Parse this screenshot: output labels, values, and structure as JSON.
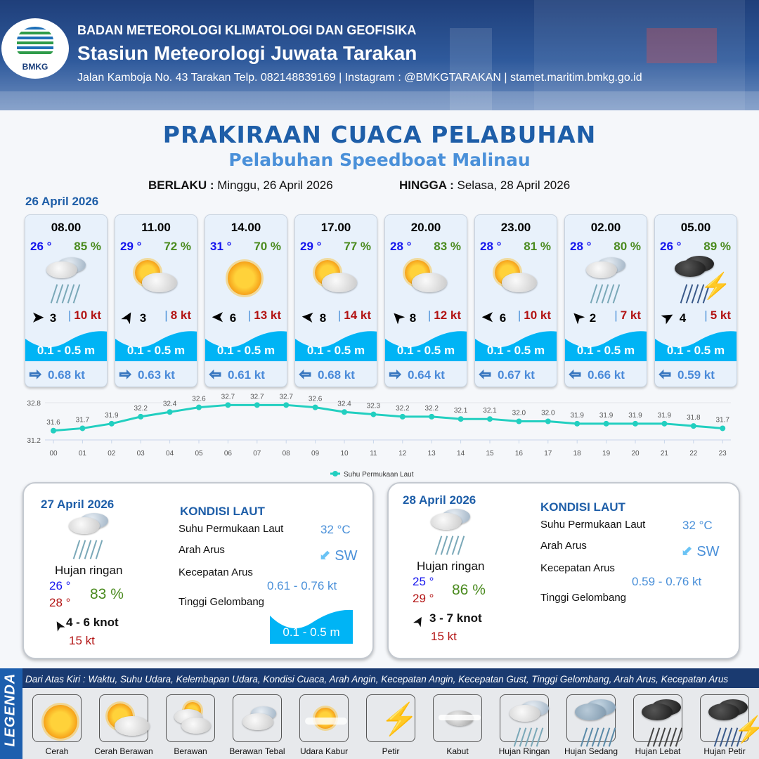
{
  "header": {
    "agency": "BADAN METEOROLOGI KLIMATOLOGI DAN GEOFISIKA",
    "station": "Stasiun Meteorologi Juwata Tarakan",
    "contact": "Jalan Kamboja No. 43 Tarakan  Telp. 082148839169 | Instagram : @BMKGTARAKAN | stamet.maritim.bmkg.go.id",
    "logo_text": "BMKG"
  },
  "title": "PRAKIRAAN CUACA PELABUHAN",
  "subtitle": "Pelabuhan Speedboat Malinau",
  "validity": {
    "from_label": "BERLAKU :",
    "from": "Minggu, 26 April 2026",
    "to_label": "HINGGA :",
    "to": "Selasa, 28 April 2026"
  },
  "day1_date": "26 April 2026",
  "colors": {
    "temp": "#1414ee",
    "humidity": "#4a8a1e",
    "gust": "#b31414",
    "wave": "#00b4f5",
    "title": "#1e5ea8",
    "line": "#22cfc0"
  },
  "forecast": [
    {
      "time": "08.00",
      "temp": "26 °",
      "rh": "85 %",
      "icon": "hujan-ringan",
      "wind_dir_deg": 0,
      "wind": "3",
      "gust": "10 kt",
      "wave": "0.1 - 0.5 m",
      "current_dir": "right",
      "current": "0.68 kt"
    },
    {
      "time": "11.00",
      "temp": "29 °",
      "rh": "72 %",
      "icon": "cerah-berawan",
      "wind_dir_deg": -60,
      "wind": "3",
      "gust": "8 kt",
      "wave": "0.1 - 0.5 m",
      "current_dir": "right",
      "current": "0.63 kt"
    },
    {
      "time": "14.00",
      "temp": "31 °",
      "rh": "70 %",
      "icon": "cerah",
      "wind_dir_deg": 180,
      "wind": "6",
      "gust": "13 kt",
      "wave": "0.1 - 0.5 m",
      "current_dir": "left",
      "current": "0.61 kt"
    },
    {
      "time": "17.00",
      "temp": "29 °",
      "rh": "77 %",
      "icon": "cerah-berawan",
      "wind_dir_deg": 185,
      "wind": "8",
      "gust": "14 kt",
      "wave": "0.1 - 0.5 m",
      "current_dir": "left",
      "current": "0.68 kt"
    },
    {
      "time": "20.00",
      "temp": "28 °",
      "rh": "83 %",
      "icon": "cerah-berawan",
      "wind_dir_deg": -135,
      "wind": "8",
      "gust": "12 kt",
      "wave": "0.1 - 0.5 m",
      "current_dir": "right",
      "current": "0.64 kt"
    },
    {
      "time": "23.00",
      "temp": "28 °",
      "rh": "81 %",
      "icon": "cerah-berawan",
      "wind_dir_deg": 180,
      "wind": "6",
      "gust": "10 kt",
      "wave": "0.1 - 0.5 m",
      "current_dir": "left",
      "current": "0.67 kt"
    },
    {
      "time": "02.00",
      "temp": "28 °",
      "rh": "80 %",
      "icon": "hujan-ringan",
      "wind_dir_deg": -135,
      "wind": "2",
      "gust": "7 kt",
      "wave": "0.1 - 0.5 m",
      "current_dir": "left",
      "current": "0.66 kt"
    },
    {
      "time": "05.00",
      "temp": "26 °",
      "rh": "89 %",
      "icon": "hujan-petir",
      "wind_dir_deg": -30,
      "wind": "4",
      "gust": "5 kt",
      "wave": "0.1 - 0.5 m",
      "current_dir": "left",
      "current": "0.59 kt"
    }
  ],
  "chart_data": {
    "type": "line",
    "x": [
      "00",
      "01",
      "02",
      "03",
      "04",
      "05",
      "06",
      "07",
      "08",
      "09",
      "10",
      "11",
      "12",
      "13",
      "14",
      "15",
      "16",
      "17",
      "18",
      "19",
      "20",
      "21",
      "22",
      "23"
    ],
    "series": [
      {
        "name": "Suhu Permukaan Laut",
        "values": [
          31.6,
          31.7,
          31.9,
          32.2,
          32.4,
          32.6,
          32.7,
          32.7,
          32.7,
          32.6,
          32.4,
          32.3,
          32.2,
          32.2,
          32.1,
          32.1,
          32.0,
          32.0,
          31.9,
          31.9,
          31.9,
          31.9,
          31.8,
          31.7
        ]
      }
    ],
    "yticks": [
      "32.8",
      "31.2"
    ],
    "ylim": [
      31.2,
      32.8
    ],
    "grid": true,
    "legend": "bottom",
    "data_labels": true
  },
  "days": [
    {
      "date": "27 April 2026",
      "icon": "hujan-ringan",
      "condition": "Hujan ringan",
      "tmin": "26 °",
      "tmax": "28 °",
      "rh": "83 %",
      "wind_dir_deg": -120,
      "wind": "4  - 6 knot",
      "gust": "15 kt",
      "kondisi": "KONDISI LAUT",
      "sst_label": "Suhu Permukaan Laut",
      "sst": "32 °C",
      "arus_label": "Arah Arus",
      "arus": "SW",
      "kec_label": "Kecepatan Arus",
      "kec": "0.61 - 0.76 kt",
      "gel_label": "Tinggi Gelombang",
      "gel": "0.1 - 0.5 m"
    },
    {
      "date": "28 April 2026",
      "icon": "hujan-ringan",
      "condition": "Hujan ringan",
      "tmin": "25 °",
      "tmax": "29 °",
      "rh": "86 %",
      "wind_dir_deg": -60,
      "wind": "3  - 7 knot",
      "gust": "15 kt",
      "kondisi": "KONDISI LAUT",
      "sst_label": "Suhu Permukaan Laut",
      "sst": "32 °C",
      "arus_label": "Arah Arus",
      "arus": "SW",
      "kec_label": "Kecepatan Arus",
      "kec": "0.59 - 0.76 kt",
      "gel_label": "Tinggi Gelombang"
    }
  ],
  "legend": {
    "title": "LEGENDA",
    "note": "Dari Atas Kiri : Waktu, Suhu Udara, Kelembapan Udara, Kondisi Cuaca, Arah Angin, Kecepatan Angin, Kecepatan Gust, Tinggi Gelombang, Arah Arus, Kecepatan Arus",
    "items": [
      {
        "icon": "cerah",
        "label": "Cerah"
      },
      {
        "icon": "cerah-berawan",
        "label": "Cerah Berawan"
      },
      {
        "icon": "berawan",
        "label": "Berawan"
      },
      {
        "icon": "berawan-tebal",
        "label": "Berawan Tebal"
      },
      {
        "icon": "udara-kabur",
        "label": "Udara Kabur"
      },
      {
        "icon": "petir",
        "label": "Petir"
      },
      {
        "icon": "kabut",
        "label": "Kabut"
      },
      {
        "icon": "hujan-ringan",
        "label": "Hujan Ringan"
      },
      {
        "icon": "hujan-sedang",
        "label": "Hujan Sedang"
      },
      {
        "icon": "hujan-lebat",
        "label": "Hujan Lebat"
      },
      {
        "icon": "hujan-petir",
        "label": "Hujan Petir"
      }
    ]
  }
}
